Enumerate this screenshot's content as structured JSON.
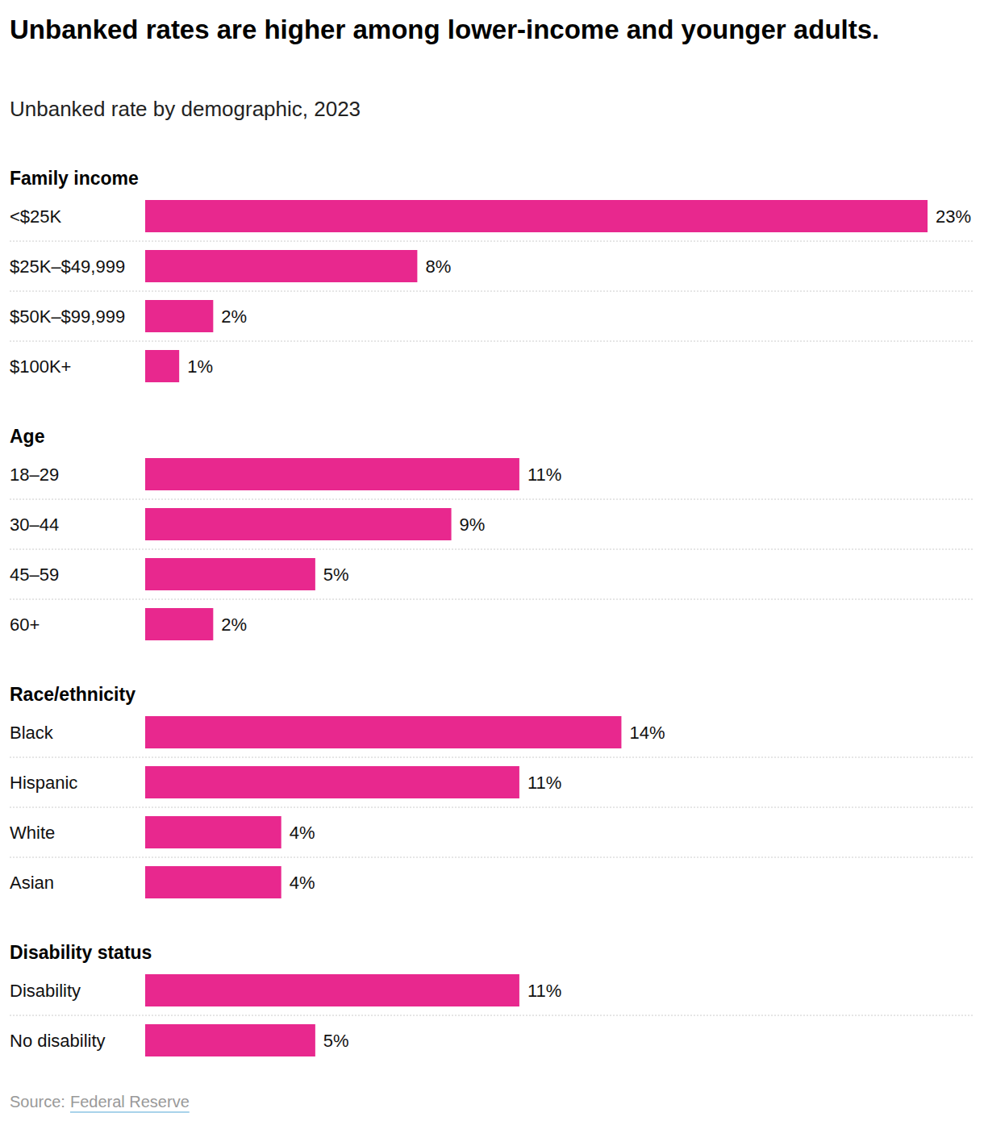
{
  "chart_data": {
    "type": "bar",
    "orientation": "horizontal",
    "title": "Unbanked rates are higher among lower-income and younger adults.",
    "subtitle": "Unbanked rate by demographic, 2023",
    "source": {
      "label": "Source:",
      "text": "Federal Reserve"
    },
    "color": "#e8288e",
    "xlim": [
      0,
      23
    ],
    "data_labels": true,
    "tick_labels": "y",
    "groups": [
      {
        "name": "Family income",
        "categories": [
          "<$25K",
          "$25K–$49,999",
          "$50K–$99,999",
          "$100K+"
        ],
        "values": [
          23,
          8,
          2,
          1
        ],
        "value_labels": [
          "23%",
          "8%",
          "2%",
          "1%"
        ]
      },
      {
        "name": "Age",
        "categories": [
          "18–29",
          "30–44",
          "45–59",
          "60+"
        ],
        "values": [
          11,
          9,
          5,
          2
        ],
        "value_labels": [
          "11%",
          "9%",
          "5%",
          "2%"
        ]
      },
      {
        "name": "Race/ethnicity",
        "categories": [
          "Black",
          "Hispanic",
          "White",
          "Asian"
        ],
        "values": [
          14,
          11,
          4,
          4
        ],
        "value_labels": [
          "14%",
          "11%",
          "4%",
          "4%"
        ]
      },
      {
        "name": "Disability status",
        "categories": [
          "Disability",
          "No disability"
        ],
        "values": [
          11,
          5
        ],
        "value_labels": [
          "11%",
          "5%"
        ]
      }
    ]
  }
}
